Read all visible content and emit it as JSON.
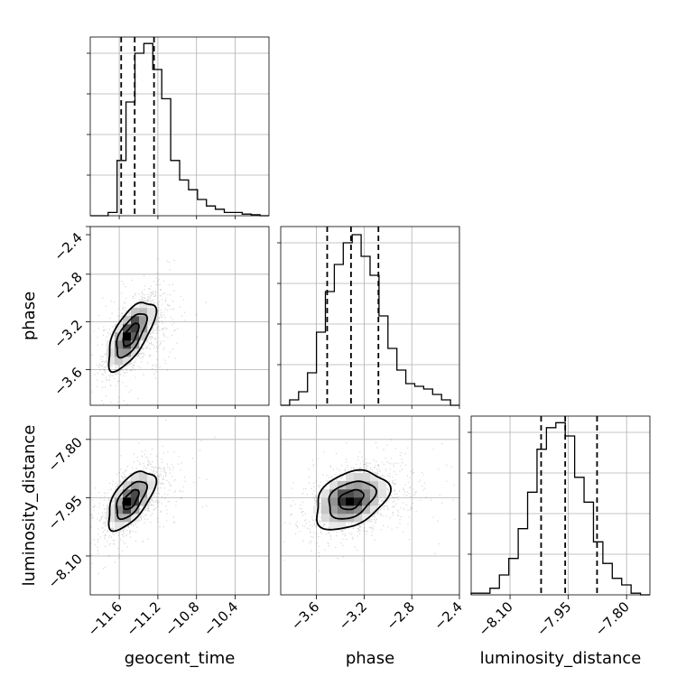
{
  "chart_data": {
    "type": "corner",
    "title": "",
    "grid": true,
    "parameters": [
      {
        "name": "geocent_time",
        "range": [
          -11.9,
          -10.05
        ],
        "ticks": [
          -11.6,
          -11.2,
          -10.8,
          -10.4
        ],
        "tick_labels": [
          "−11.6",
          "−11.2",
          "−10.8",
          "−10.4"
        ],
        "quantiles": [
          -11.58,
          -11.44,
          -11.24
        ],
        "histogram": [
          0,
          0,
          1,
          17,
          35,
          50,
          53,
          45,
          36,
          17,
          11,
          8,
          5,
          3,
          2,
          1,
          1,
          0.5,
          0.3,
          0
        ],
        "hist_max": 55
      },
      {
        "name": "phase",
        "range": [
          -3.9,
          -2.4
        ],
        "ticks": [
          -3.6,
          -3.2,
          -2.8,
          -2.4
        ],
        "tick_labels": [
          "−3.6",
          "−3.2",
          "−2.8",
          "−2.4"
        ],
        "quantiles": [
          -3.51,
          -3.31,
          -3.08
        ],
        "histogram": [
          0,
          2,
          5,
          12,
          27,
          42,
          52,
          60,
          63,
          55,
          48,
          33,
          21,
          13,
          8,
          7,
          6,
          4,
          2,
          0
        ],
        "hist_max": 66
      },
      {
        "name": "luminosity_distance",
        "range": [
          -8.2,
          -7.74
        ],
        "ticks": [
          -8.1,
          -7.95,
          -7.8
        ],
        "tick_labels": [
          "−8.10",
          "−7.95",
          "−7.80"
        ],
        "quantiles": [
          -8.02,
          -7.958,
          -7.876
        ],
        "histogram": [
          1,
          1,
          4,
          12,
          22,
          40,
          62,
          88,
          101,
          104,
          96,
          71,
          56,
          32,
          19,
          10,
          6,
          1,
          0
        ],
        "hist_max": 108
      }
    ],
    "pairs": [
      {
        "x_param": 0,
        "y_param": 1,
        "center": [
          -11.48,
          -3.31
        ],
        "sd": [
          0.135,
          0.16
        ],
        "corr": 0.66,
        "hotspots": [
          [
            -11.52,
            -3.3,
            1.0
          ],
          [
            -11.44,
            -3.2,
            0.7
          ],
          [
            -11.56,
            -3.4,
            0.6
          ]
        ]
      },
      {
        "x_param": 0,
        "y_param": 2,
        "center": [
          -11.48,
          -7.955
        ],
        "sd": [
          0.135,
          0.042
        ],
        "corr": 0.6,
        "hotspots": [
          [
            -11.51,
            -7.965,
            1.0
          ],
          [
            -11.47,
            -7.95,
            0.8
          ],
          [
            -11.56,
            -7.985,
            0.5
          ]
        ]
      },
      {
        "x_param": 1,
        "y_param": 2,
        "center": [
          -3.31,
          -7.955
        ],
        "sd": [
          0.17,
          0.042
        ],
        "corr": 0.35,
        "hotspots": [
          [
            -3.34,
            -7.955,
            1.0
          ],
          [
            -3.25,
            -7.96,
            0.7
          ],
          [
            -3.4,
            -7.945,
            0.6
          ]
        ]
      }
    ]
  }
}
